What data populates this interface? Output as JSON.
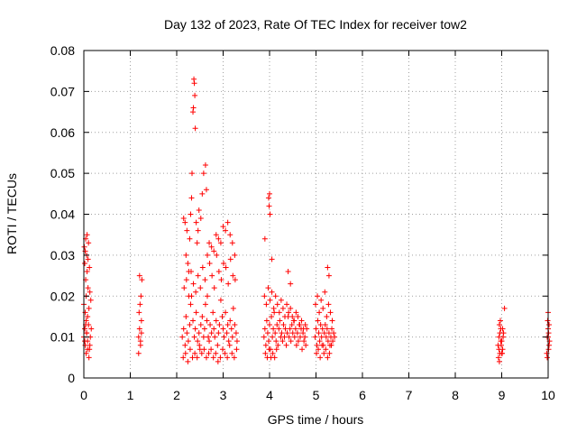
{
  "chart_data": {
    "type": "scatter",
    "title": "Day 132 of 2023, Rate Of TEC Index for receiver tow2",
    "xlabel": "GPS time / hours",
    "ylabel": "ROTI / TECUs",
    "xlim": [
      0,
      10
    ],
    "ylim": [
      0,
      0.08
    ],
    "x_ticks": [
      0,
      1,
      2,
      3,
      4,
      5,
      6,
      7,
      8,
      9,
      10
    ],
    "y_ticks": [
      0,
      0.01,
      0.02,
      0.03,
      0.04,
      0.05,
      0.06,
      0.07,
      0.08
    ],
    "x_tick_labels": [
      "0",
      "1",
      "2",
      "3",
      "4",
      "5",
      "6",
      "7",
      "8",
      "9",
      "10"
    ],
    "y_tick_labels": [
      "0",
      "0.01",
      "0.02",
      "0.03",
      "0.04",
      "0.05",
      "0.06",
      "0.07",
      "0.08"
    ],
    "grid": true,
    "marker": "+",
    "series": [
      {
        "name": "tow2",
        "color": "#ff0000",
        "x": [
          0.0,
          0.02,
          0.03,
          0.05,
          0.06,
          0.08,
          0.1,
          0.12,
          0.14,
          0.16,
          0.0,
          0.03,
          0.05,
          0.08,
          0.11,
          0.13,
          0.15,
          0.04,
          0.07,
          0.09,
          0.02,
          0.06,
          0.1,
          0.12,
          0.04,
          0.07,
          0.01,
          0.03,
          0.09,
          0.05,
          0.11,
          0.08,
          0.13,
          0.02,
          0.06,
          0.04,
          1.18,
          1.2,
          1.22,
          1.24,
          1.19,
          1.21,
          1.23,
          1.25,
          1.2,
          1.22,
          1.18,
          1.24,
          2.12,
          2.15,
          2.18,
          2.2,
          2.22,
          2.25,
          2.28,
          2.3,
          2.32,
          2.35,
          2.38,
          2.4,
          2.42,
          2.45,
          2.48,
          2.5,
          2.52,
          2.55,
          2.58,
          2.6,
          2.62,
          2.65,
          2.68,
          2.7,
          2.72,
          2.75,
          2.78,
          2.8,
          2.82,
          2.85,
          2.88,
          2.9,
          2.92,
          2.95,
          2.98,
          3.0,
          3.02,
          3.05,
          3.08,
          3.1,
          3.12,
          3.15,
          3.18,
          3.2,
          3.22,
          3.25,
          3.28,
          3.3,
          2.14,
          2.19,
          2.24,
          2.29,
          2.34,
          2.39,
          2.44,
          2.49,
          2.54,
          2.59,
          2.64,
          2.69,
          2.74,
          2.79,
          2.84,
          2.89,
          2.94,
          2.99,
          3.04,
          3.09,
          3.14,
          3.19,
          3.24,
          3.29,
          2.16,
          2.21,
          2.26,
          2.31,
          2.36,
          2.41,
          2.46,
          2.51,
          2.56,
          2.61,
          2.66,
          2.71,
          2.76,
          2.81,
          2.86,
          2.91,
          2.96,
          3.01,
          3.06,
          3.11,
          3.16,
          3.21,
          3.26,
          2.3,
          2.32,
          2.33,
          2.35,
          2.36,
          2.37,
          2.38,
          2.39,
          2.4,
          2.42,
          2.44,
          2.46,
          2.55,
          2.58,
          2.62,
          2.64,
          2.66,
          2.15,
          2.18,
          2.22,
          2.28,
          2.85,
          2.9,
          2.95,
          3.0,
          3.05,
          3.1,
          3.15,
          2.2,
          2.24,
          2.26,
          2.7,
          2.75,
          2.8,
          3.2,
          3.25,
          2.48,
          2.52,
          3.88,
          3.9,
          3.92,
          3.94,
          3.96,
          3.98,
          4.0,
          4.02,
          4.04,
          4.06,
          4.08,
          4.1,
          4.12,
          4.14,
          4.16,
          4.18,
          4.2,
          4.22,
          4.24,
          4.26,
          4.28,
          4.3,
          4.32,
          4.34,
          4.36,
          4.38,
          4.4,
          4.42,
          4.44,
          4.46,
          4.48,
          4.5,
          4.52,
          4.54,
          4.56,
          4.58,
          4.6,
          4.62,
          4.64,
          4.66,
          4.68,
          4.7,
          4.72,
          4.74,
          4.76,
          4.78,
          4.8,
          3.89,
          3.93,
          3.97,
          4.01,
          4.05,
          4.09,
          4.13,
          4.17,
          4.21,
          4.25,
          4.29,
          4.33,
          4.37,
          4.41,
          4.45,
          4.49,
          4.53,
          4.57,
          4.61,
          4.65,
          4.69,
          4.73,
          4.77,
          3.91,
          3.95,
          3.99,
          4.03,
          4.07,
          4.11,
          4.15,
          3.98,
          4.0,
          3.99,
          4.01,
          4.4,
          4.45,
          3.9,
          4.05,
          4.98,
          5.0,
          5.02,
          5.04,
          5.06,
          5.08,
          5.1,
          5.12,
          5.14,
          5.16,
          5.18,
          5.2,
          5.22,
          5.24,
          5.26,
          5.28,
          5.3,
          5.32,
          5.34,
          5.36,
          5.38,
          5.4,
          4.99,
          5.03,
          5.07,
          5.11,
          5.15,
          5.19,
          5.23,
          5.27,
          5.31,
          5.35,
          5.01,
          5.05,
          5.09,
          5.13,
          5.17,
          5.21,
          5.25,
          5.29,
          5.33,
          5.25,
          5.28,
          8.92,
          8.94,
          8.96,
          8.98,
          9.0,
          9.02,
          9.04,
          8.93,
          8.95,
          8.97,
          8.99,
          9.01,
          9.03,
          8.94,
          8.96,
          8.98,
          9.0,
          9.02,
          9.06,
          8.95,
          9.98,
          10.0,
          10.02,
          9.99,
          10.01,
          10.03,
          9.97,
          10.0,
          10.02,
          9.98,
          10.01,
          10.0
        ],
        "y": [
          0.01,
          0.012,
          0.008,
          0.014,
          0.011,
          0.009,
          0.013,
          0.007,
          0.01,
          0.012,
          0.018,
          0.016,
          0.02,
          0.015,
          0.017,
          0.021,
          0.019,
          0.024,
          0.026,
          0.022,
          0.028,
          0.03,
          0.033,
          0.027,
          0.034,
          0.035,
          0.032,
          0.031,
          0.029,
          0.006,
          0.005,
          0.007,
          0.008,
          0.009,
          0.011,
          0.013,
          0.01,
          0.012,
          0.008,
          0.014,
          0.016,
          0.018,
          0.02,
          0.024,
          0.025,
          0.009,
          0.006,
          0.011,
          0.01,
          0.012,
          0.008,
          0.015,
          0.011,
          0.009,
          0.013,
          0.018,
          0.02,
          0.014,
          0.01,
          0.012,
          0.016,
          0.009,
          0.011,
          0.007,
          0.013,
          0.015,
          0.01,
          0.012,
          0.018,
          0.014,
          0.01,
          0.009,
          0.013,
          0.011,
          0.016,
          0.012,
          0.01,
          0.014,
          0.008,
          0.011,
          0.013,
          0.019,
          0.015,
          0.012,
          0.01,
          0.016,
          0.011,
          0.013,
          0.009,
          0.014,
          0.012,
          0.01,
          0.017,
          0.013,
          0.011,
          0.009,
          0.005,
          0.006,
          0.004,
          0.007,
          0.005,
          0.006,
          0.005,
          0.008,
          0.006,
          0.007,
          0.005,
          0.006,
          0.007,
          0.005,
          0.006,
          0.004,
          0.005,
          0.007,
          0.006,
          0.005,
          0.008,
          0.006,
          0.005,
          0.007,
          0.022,
          0.024,
          0.02,
          0.026,
          0.023,
          0.021,
          0.025,
          0.022,
          0.027,
          0.024,
          0.02,
          0.028,
          0.025,
          0.022,
          0.03,
          0.026,
          0.024,
          0.028,
          0.027,
          0.023,
          0.029,
          0.025,
          0.024,
          0.04,
          0.044,
          0.05,
          0.065,
          0.066,
          0.073,
          0.072,
          0.069,
          0.061,
          0.038,
          0.033,
          0.036,
          0.045,
          0.05,
          0.052,
          0.046,
          0.03,
          0.039,
          0.038,
          0.036,
          0.034,
          0.035,
          0.034,
          0.033,
          0.037,
          0.036,
          0.038,
          0.035,
          0.03,
          0.028,
          0.026,
          0.033,
          0.032,
          0.031,
          0.033,
          0.03,
          0.041,
          0.039,
          0.01,
          0.012,
          0.008,
          0.014,
          0.011,
          0.009,
          0.013,
          0.007,
          0.015,
          0.01,
          0.012,
          0.016,
          0.011,
          0.009,
          0.013,
          0.008,
          0.012,
          0.014,
          0.01,
          0.011,
          0.009,
          0.013,
          0.01,
          0.012,
          0.008,
          0.011,
          0.015,
          0.01,
          0.012,
          0.009,
          0.013,
          0.011,
          0.014,
          0.01,
          0.012,
          0.008,
          0.011,
          0.009,
          0.013,
          0.01,
          0.012,
          0.007,
          0.011,
          0.009,
          0.01,
          0.008,
          0.012,
          0.02,
          0.018,
          0.022,
          0.019,
          0.021,
          0.017,
          0.02,
          0.018,
          0.016,
          0.019,
          0.017,
          0.015,
          0.018,
          0.016,
          0.017,
          0.015,
          0.014,
          0.016,
          0.015,
          0.013,
          0.014,
          0.012,
          0.013,
          0.006,
          0.005,
          0.007,
          0.005,
          0.006,
          0.005,
          0.007,
          0.044,
          0.045,
          0.042,
          0.04,
          0.026,
          0.023,
          0.034,
          0.029,
          0.01,
          0.012,
          0.008,
          0.014,
          0.011,
          0.009,
          0.013,
          0.01,
          0.012,
          0.008,
          0.011,
          0.013,
          0.01,
          0.012,
          0.009,
          0.011,
          0.008,
          0.01,
          0.012,
          0.009,
          0.011,
          0.01,
          0.018,
          0.02,
          0.016,
          0.019,
          0.017,
          0.021,
          0.015,
          0.018,
          0.016,
          0.014,
          0.006,
          0.007,
          0.005,
          0.008,
          0.006,
          0.007,
          0.005,
          0.006,
          0.008,
          0.027,
          0.025,
          0.008,
          0.01,
          0.006,
          0.012,
          0.009,
          0.007,
          0.011,
          0.005,
          0.013,
          0.014,
          0.008,
          0.006,
          0.01,
          0.007,
          0.011,
          0.009,
          0.006,
          0.012,
          0.017,
          0.004,
          0.01,
          0.012,
          0.008,
          0.014,
          0.011,
          0.009,
          0.006,
          0.016,
          0.013,
          0.005,
          0.007,
          0.01
        ]
      }
    ]
  }
}
